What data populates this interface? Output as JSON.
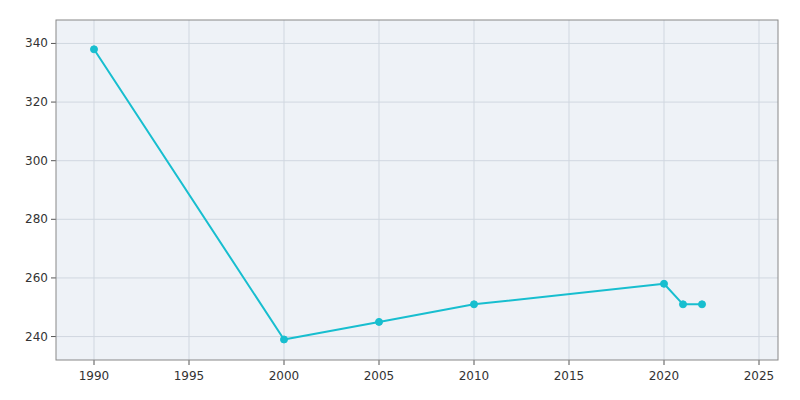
{
  "chart_data": {
    "type": "line",
    "x": [
      1990,
      2000,
      2005,
      2010,
      2020,
      2021,
      2022
    ],
    "values": [
      338,
      239,
      245,
      251,
      258,
      251,
      251
    ],
    "color": "#17becf",
    "marker": "circle",
    "xlim": [
      1988,
      2026
    ],
    "ylim": [
      232,
      348
    ],
    "xticks": [
      1990,
      1995,
      2000,
      2005,
      2010,
      2015,
      2020,
      2025
    ],
    "yticks": [
      240,
      260,
      280,
      300,
      320,
      340
    ],
    "grid": true
  }
}
